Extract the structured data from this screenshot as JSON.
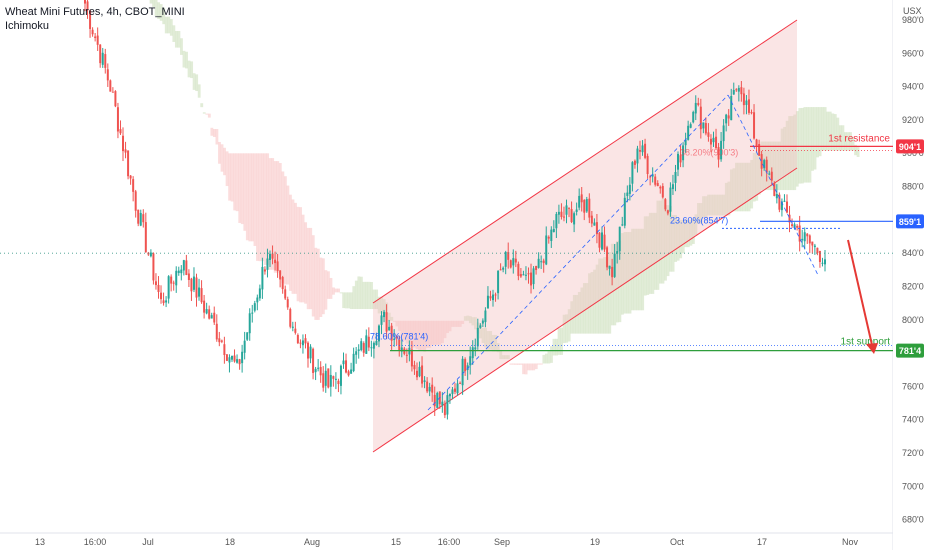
{
  "legend": {
    "symbol_line": "Wheat Mini Futures, 4h, CBOT_MINI",
    "indicator": "Ichimoku"
  },
  "currency_label": "USX",
  "colors": {
    "up": "#26a69a",
    "down": "#ef5350",
    "resistance": "#f23645",
    "support": "#2e9e3c",
    "fib": "#2962ff",
    "channel": "#f23645",
    "channel_fill": "#f5c6c6",
    "cloud_red": "#f7c1c1",
    "cloud_green": "#c9ddb6",
    "price_line": "#3d9a8b",
    "axis_text": "#555555",
    "arrow": "#e53935"
  },
  "chart_data": {
    "type": "candlestick",
    "title": "Wheat Mini Futures, 4h, CBOT_MINI",
    "ylabel": "USX",
    "ylim": [
      672,
      992
    ],
    "y_ticks": [
      "680'0",
      "700'0",
      "720'0",
      "740'0",
      "760'0",
      "780'0",
      "800'0",
      "820'0",
      "840'0",
      "860'0",
      "880'0",
      "900'0",
      "920'0",
      "940'0",
      "960'0",
      "980'0"
    ],
    "y_tick_values": [
      680,
      700,
      720,
      740,
      760,
      780,
      800,
      820,
      840,
      860,
      880,
      900,
      920,
      940,
      960,
      980
    ],
    "x_ticks": [
      "13",
      "16:00",
      "Jul",
      "18",
      "Aug",
      "15",
      "16:00",
      "Sep",
      "19",
      "Oct",
      "17",
      "Nov"
    ],
    "price_guide": 840,
    "series_summary": [
      {
        "t": 0,
        "price": 990
      },
      {
        "t": 10,
        "price": 940
      },
      {
        "t": 20,
        "price": 870
      },
      {
        "t": 30,
        "price": 810
      },
      {
        "t": 38,
        "price": 835
      },
      {
        "t": 48,
        "price": 805
      },
      {
        "t": 60,
        "price": 770
      },
      {
        "t": 72,
        "price": 840
      },
      {
        "t": 84,
        "price": 790
      },
      {
        "t": 96,
        "price": 760
      },
      {
        "t": 108,
        "price": 780
      },
      {
        "t": 118,
        "price": 800
      },
      {
        "t": 130,
        "price": 775
      },
      {
        "t": 142,
        "price": 745
      },
      {
        "t": 154,
        "price": 790
      },
      {
        "t": 166,
        "price": 835
      },
      {
        "t": 176,
        "price": 820
      },
      {
        "t": 186,
        "price": 860
      },
      {
        "t": 198,
        "price": 870
      },
      {
        "t": 208,
        "price": 830
      },
      {
        "t": 218,
        "price": 905
      },
      {
        "t": 230,
        "price": 870
      },
      {
        "t": 240,
        "price": 930
      },
      {
        "t": 250,
        "price": 900
      },
      {
        "t": 258,
        "price": 945
      },
      {
        "t": 268,
        "price": 890
      },
      {
        "t": 276,
        "price": 865
      },
      {
        "t": 284,
        "price": 848
      },
      {
        "t": 292,
        "price": 838
      }
    ],
    "annotations": [
      {
        "label": "1st resistance",
        "value_label": "904'1",
        "value": 904.125,
        "color": "resistance"
      },
      {
        "label": "1st support",
        "value_label": "781'4",
        "value": 781.5,
        "color": "support"
      },
      {
        "label": "",
        "value_label": "859'1",
        "value": 859.125,
        "color": "fib"
      },
      {
        "label": "23.60%(854'7)",
        "value": 854.875
      },
      {
        "label": "78.60%(781'4)",
        "value": 781.5
      },
      {
        "label": "38.20%(900'3)",
        "value": 900.375
      }
    ]
  }
}
